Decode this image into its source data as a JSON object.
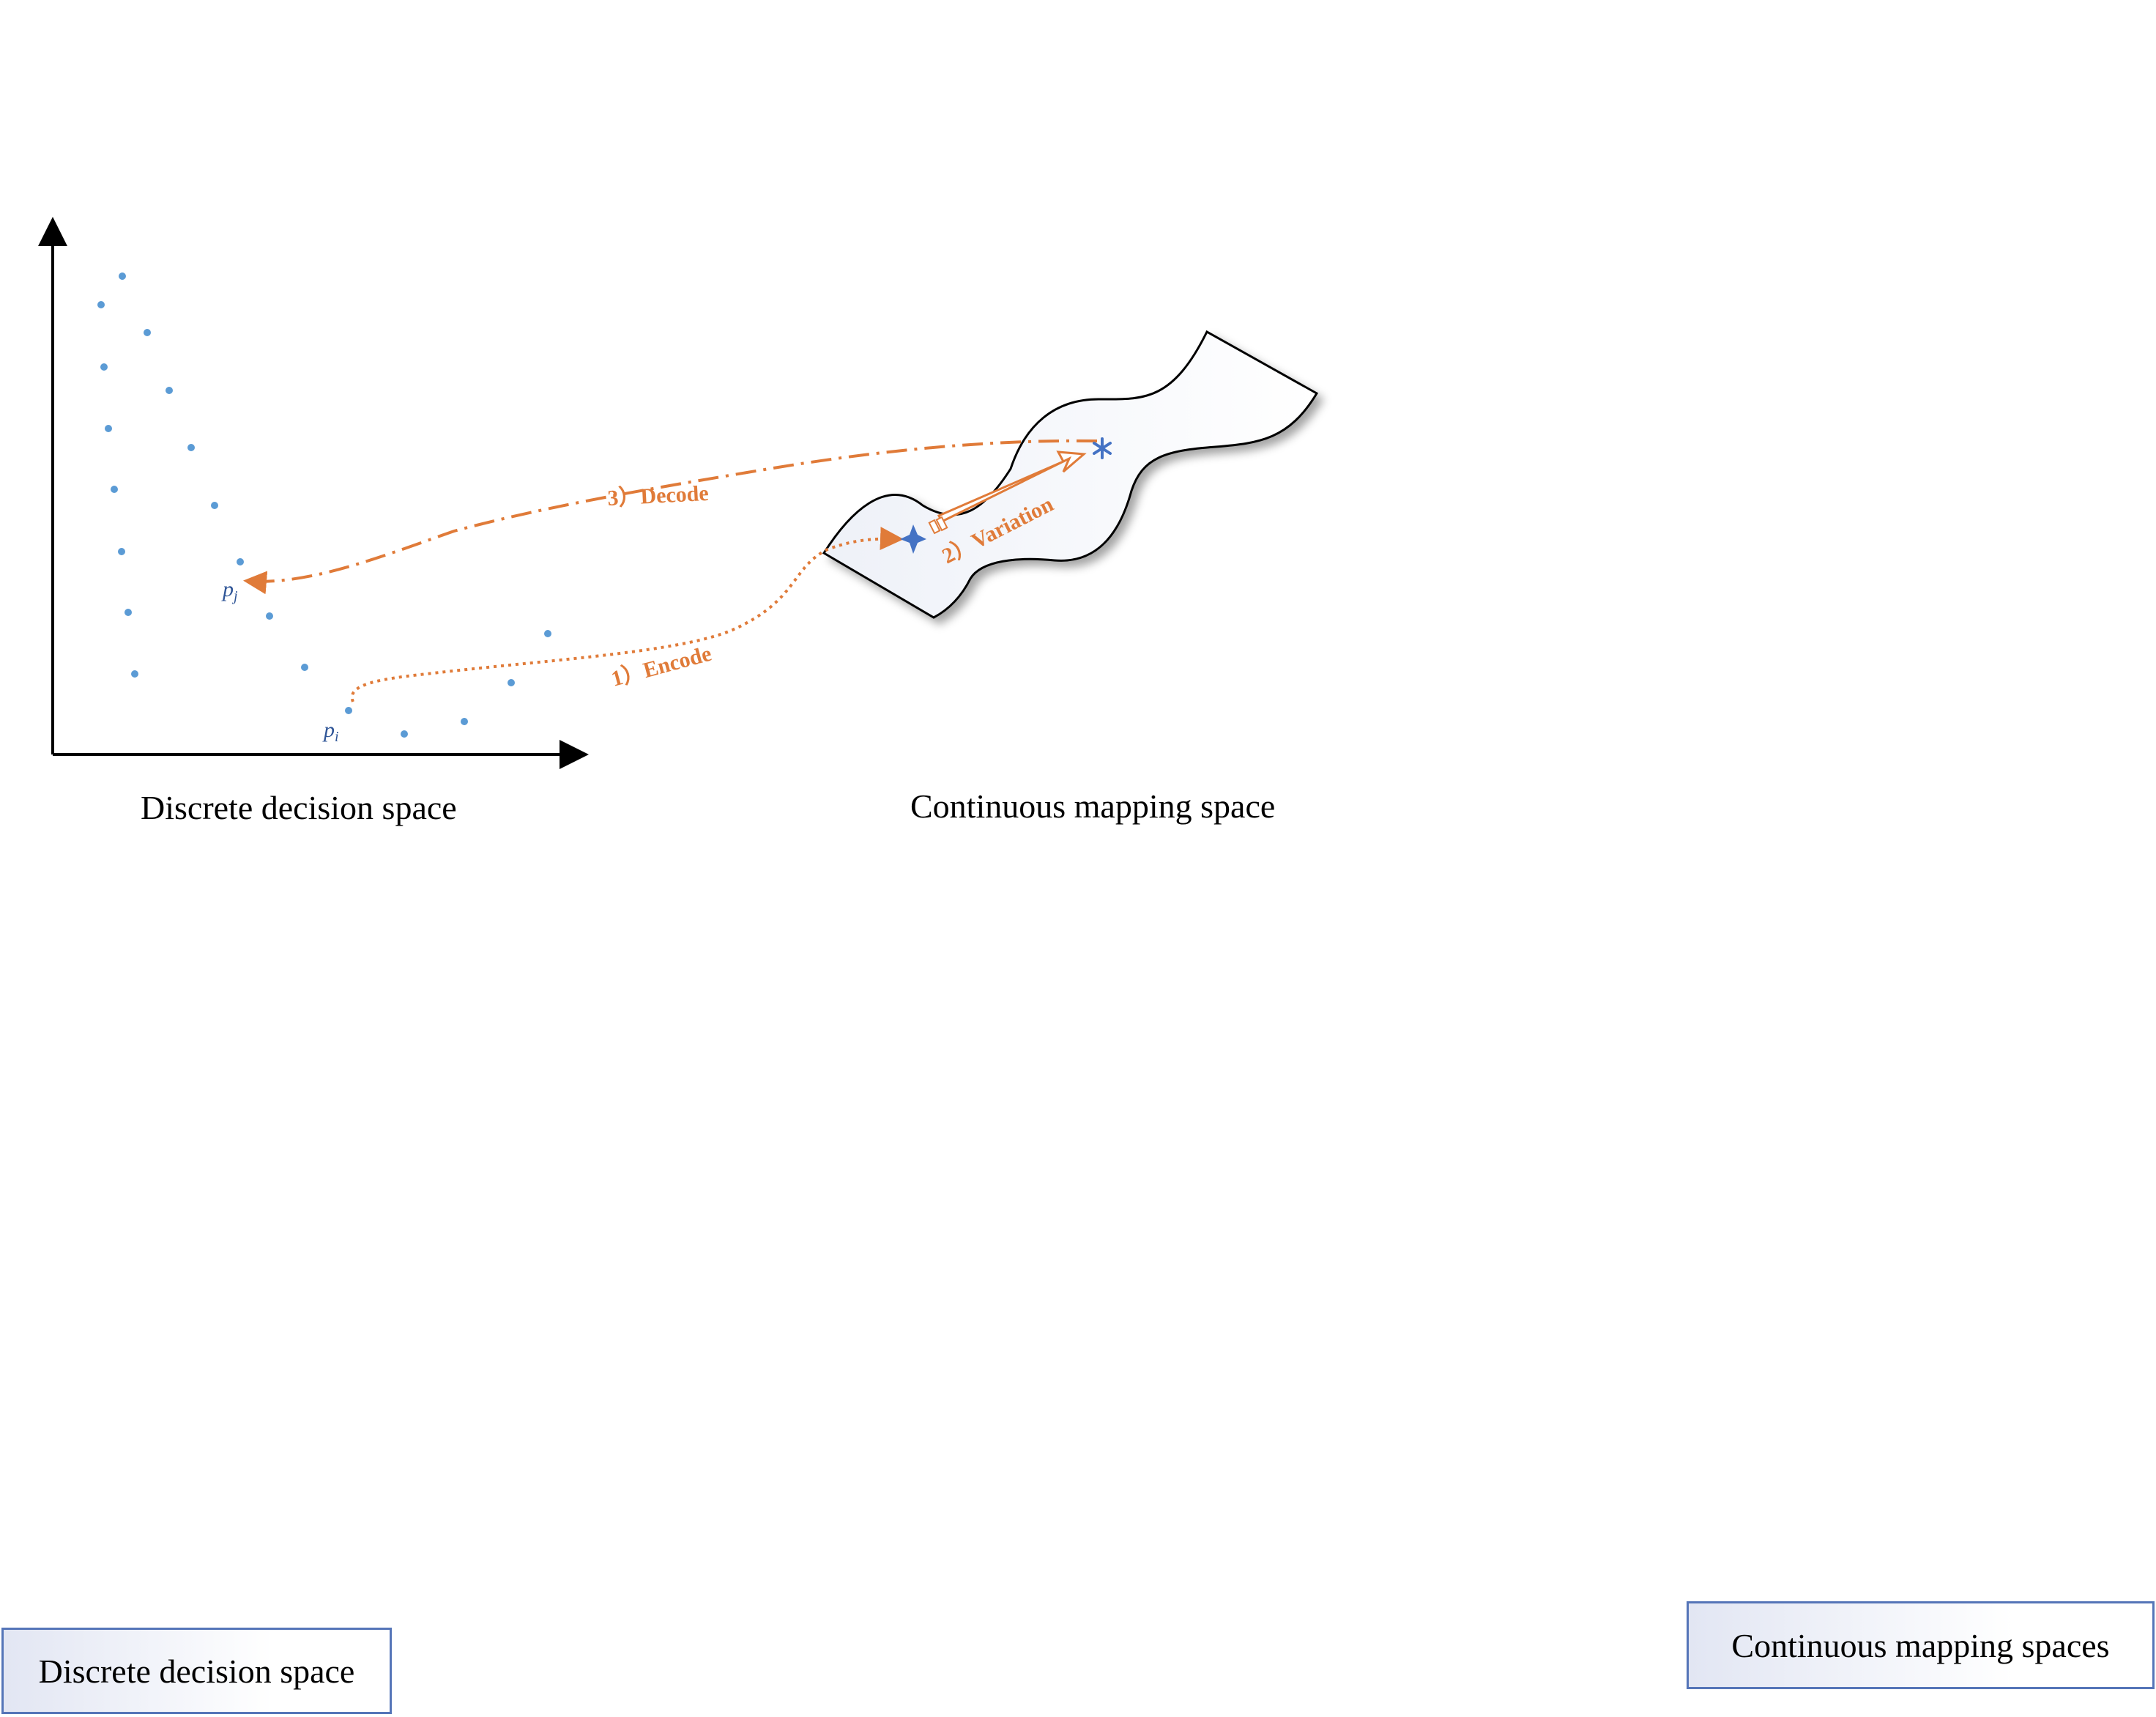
{
  "left_panel": {
    "caption": "Discrete decision space",
    "point_i_label": "p",
    "point_i_sub": "i",
    "point_j_label": "p",
    "point_j_sub": "j"
  },
  "right_panel": {
    "caption": "Continuous mapping space"
  },
  "steps": {
    "encode": "1）Encode",
    "variation": "2）Variation",
    "decode": "3）Decode"
  },
  "boxes": {
    "left": "Discrete decision space",
    "right": "Continuous mapping spaces"
  },
  "colors": {
    "points": "#5b9bd5",
    "arrows": "#e07b39",
    "stars": "#4472c4"
  }
}
